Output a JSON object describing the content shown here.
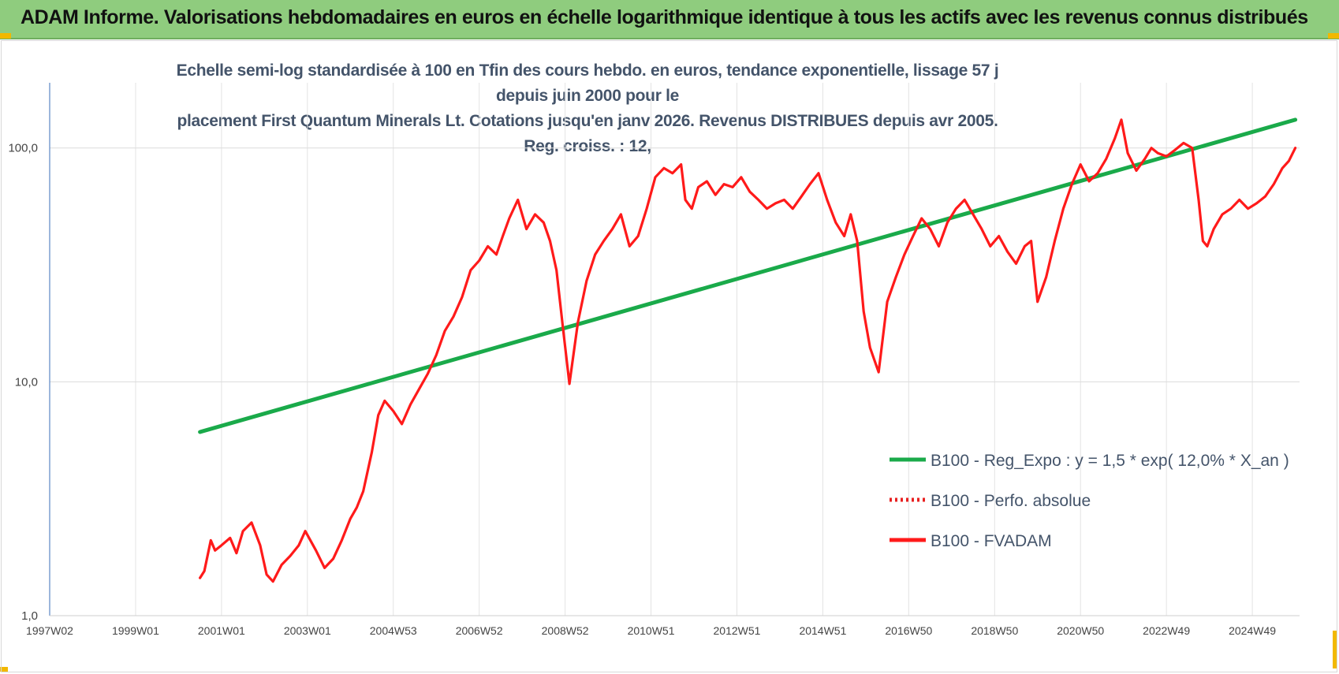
{
  "header": {
    "title": "ADAM Informe. Valorisations hebdomadaires en euros en échelle logarithmique identique à tous les actifs avec les revenus connus distribués"
  },
  "colors": {
    "header_bg": "#8fcc7e",
    "corner_accent": "#f2b800",
    "regression": "#1aaa4a",
    "fvadam": "#ff1a1a",
    "perfo": "#e82020"
  },
  "chart_data": {
    "type": "line",
    "title_line1": "Echelle semi-log standardisée à 100 en Tfin des cours hebdo. en euros, tendance exponentielle, lissage 57 j depuis juin 2000 pour le",
    "title_line2": "placement First Quantum Minerals Lt. Cotations jusqu'en janv 2026. Revenus DISTRIBUES depuis avr 2005. Reg. croiss. : 12,",
    "y_scale": "log",
    "ylim": [
      1,
      190
    ],
    "xlim": [
      1997.0,
      2026.1
    ],
    "grid": true,
    "legend_position": "right",
    "y_ticks": [
      {
        "value": 1,
        "label": "1,0"
      },
      {
        "value": 10,
        "label": "10,0"
      },
      {
        "value": 100,
        "label": "100,0"
      }
    ],
    "x_ticks": [
      {
        "x": 1997.0,
        "label": "1997W02"
      },
      {
        "x": 1999.0,
        "label": "1999W01"
      },
      {
        "x": 2001.0,
        "label": "2001W01"
      },
      {
        "x": 2003.0,
        "label": "2003W01"
      },
      {
        "x": 2005.0,
        "label": "2004W53"
      },
      {
        "x": 2007.0,
        "label": "2006W52"
      },
      {
        "x": 2009.0,
        "label": "2008W52"
      },
      {
        "x": 2011.0,
        "label": "2010W51"
      },
      {
        "x": 2013.0,
        "label": "2012W51"
      },
      {
        "x": 2015.0,
        "label": "2014W51"
      },
      {
        "x": 2017.0,
        "label": "2016W50"
      },
      {
        "x": 2019.0,
        "label": "2018W50"
      },
      {
        "x": 2021.0,
        "label": "2020W50"
      },
      {
        "x": 2023.0,
        "label": "2022W49"
      },
      {
        "x": 2025.0,
        "label": "2024W49"
      }
    ],
    "series": [
      {
        "name": "B100 - Reg_Expo : y = 1,5 * exp( 12,0% *  X_an )",
        "style": "solid-green",
        "x": [
          2000.5,
          2026.0
        ],
        "y": [
          6.1,
          132
        ]
      },
      {
        "name": "B100 - Perfo. absolue",
        "style": "dotted-red",
        "x": [],
        "y": []
      },
      {
        "name": "B100 - FVADAM",
        "style": "solid-red",
        "x": [
          2000.5,
          2000.6,
          2000.75,
          2000.85,
          2001.0,
          2001.2,
          2001.35,
          2001.5,
          2001.7,
          2001.9,
          2002.05,
          2002.2,
          2002.4,
          2002.6,
          2002.8,
          2002.95,
          2003.2,
          2003.4,
          2003.6,
          2003.8,
          2004.0,
          2004.15,
          2004.3,
          2004.5,
          2004.65,
          2004.8,
          2005.0,
          2005.2,
          2005.4,
          2005.6,
          2005.8,
          2006.0,
          2006.2,
          2006.4,
          2006.6,
          2006.8,
          2007.0,
          2007.2,
          2007.4,
          2007.55,
          2007.7,
          2007.9,
          2008.1,
          2008.3,
          2008.5,
          2008.65,
          2008.8,
          2008.95,
          2009.1,
          2009.3,
          2009.5,
          2009.7,
          2009.9,
          2010.1,
          2010.3,
          2010.5,
          2010.7,
          2010.9,
          2011.1,
          2011.3,
          2011.5,
          2011.7,
          2011.8,
          2011.95,
          2012.1,
          2012.3,
          2012.5,
          2012.7,
          2012.9,
          2013.1,
          2013.3,
          2013.5,
          2013.7,
          2013.9,
          2014.1,
          2014.3,
          2014.5,
          2014.7,
          2014.9,
          2015.1,
          2015.3,
          2015.5,
          2015.65,
          2015.8,
          2015.95,
          2016.1,
          2016.3,
          2016.5,
          2016.7,
          2016.9,
          2017.1,
          2017.3,
          2017.5,
          2017.7,
          2017.9,
          2018.1,
          2018.3,
          2018.5,
          2018.7,
          2018.9,
          2019.1,
          2019.3,
          2019.5,
          2019.7,
          2019.85,
          2020.0,
          2020.2,
          2020.4,
          2020.6,
          2020.8,
          2021.0,
          2021.2,
          2021.4,
          2021.6,
          2021.8,
          2021.95,
          2022.1,
          2022.3,
          2022.5,
          2022.65,
          2022.8,
          2023.0,
          2023.2,
          2023.4,
          2023.6,
          2023.75,
          2023.85,
          2023.95,
          2024.1,
          2024.3,
          2024.5,
          2024.7,
          2024.9,
          2025.1,
          2025.3,
          2025.5,
          2025.7,
          2025.85,
          2026.0
        ],
        "y": [
          1.45,
          1.55,
          2.1,
          1.9,
          2.0,
          2.15,
          1.85,
          2.3,
          2.5,
          2.0,
          1.5,
          1.4,
          1.65,
          1.8,
          2.0,
          2.3,
          1.9,
          1.6,
          1.75,
          2.1,
          2.6,
          2.9,
          3.4,
          5.0,
          7.2,
          8.3,
          7.5,
          6.6,
          8.0,
          9.3,
          10.8,
          13.0,
          16.5,
          19.0,
          23.0,
          30.0,
          33.0,
          38.0,
          35.0,
          42.0,
          50.0,
          60.0,
          45.0,
          52.0,
          48.0,
          40.0,
          30.0,
          17.0,
          9.8,
          18.0,
          27.0,
          35.0,
          40.0,
          45.0,
          52.0,
          38.0,
          42.0,
          55.0,
          75.0,
          82.0,
          78.0,
          85.0,
          60.0,
          55.0,
          68.0,
          72.0,
          63.0,
          70.0,
          68.0,
          75.0,
          65.0,
          60.0,
          55.0,
          58.0,
          60.0,
          55.0,
          62.0,
          70.0,
          78.0,
          60.0,
          48.0,
          42.0,
          52.0,
          40.0,
          20.0,
          14.0,
          11.0,
          22.0,
          28.0,
          35.0,
          42.0,
          50.0,
          45.0,
          38.0,
          48.0,
          55.0,
          60.0,
          52.0,
          45.0,
          38.0,
          42.0,
          36.0,
          32.0,
          38.0,
          40.0,
          22.0,
          28.0,
          40.0,
          55.0,
          70.0,
          85.0,
          72.0,
          78.0,
          90.0,
          110.0,
          132.0,
          95.0,
          80.0,
          90.0,
          100.0,
          95.0,
          92.0,
          98.0,
          105.0,
          100.0,
          60.0,
          40.0,
          38.0,
          45.0,
          52.0,
          55.0,
          60.0,
          55.0,
          58.0,
          62.0,
          70.0,
          82.0,
          88.0,
          100.0
        ]
      }
    ]
  }
}
